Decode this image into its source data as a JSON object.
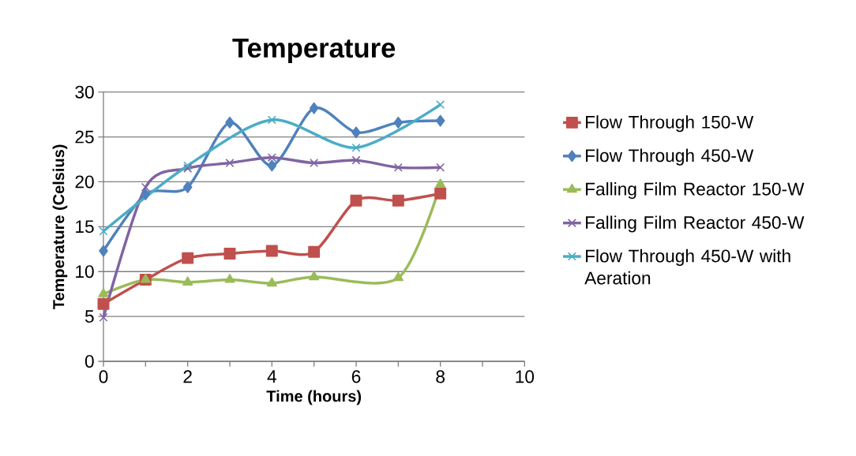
{
  "chart_data": {
    "type": "line",
    "title": "Temperature",
    "xlabel": "Time (hours)",
    "ylabel": "Temperature (Celsius)",
    "xlim": [
      0,
      10
    ],
    "xticks": [
      0,
      {
        "value": 1,
        "label": null
      },
      2,
      {
        "value": 3,
        "label": null
      },
      4,
      {
        "value": 5,
        "label": null
      },
      6,
      {
        "value": 7,
        "label": null
      },
      8,
      {
        "value": 9,
        "label": null
      },
      10
    ],
    "ylim": [
      0,
      30
    ],
    "yticks": [
      0,
      5,
      10,
      15,
      20,
      25,
      30
    ],
    "grid": "y",
    "legend": "right",
    "series": [
      {
        "name": "Flow Through 150-W",
        "color": "#c0504d",
        "marker": "square",
        "x": [
          0,
          1,
          2,
          3,
          4,
          5,
          6,
          7,
          8
        ],
        "values": [
          6.4,
          9.1,
          11.5,
          12.0,
          12.3,
          12.2,
          17.9,
          17.9,
          18.7
        ]
      },
      {
        "name": "Flow Through 450-W",
        "color": "#4f81bd",
        "marker": "diamond",
        "x": [
          0,
          1,
          2,
          3,
          4,
          5,
          6,
          7,
          8
        ],
        "values": [
          12.3,
          18.6,
          19.4,
          26.6,
          21.8,
          28.2,
          25.5,
          26.6,
          26.8
        ]
      },
      {
        "name": "Falling Film Reactor 150-W",
        "color": "#9bbb59",
        "marker": "triangle",
        "x": [
          0,
          1,
          2,
          3,
          4,
          5,
          7,
          8
        ],
        "values": [
          7.5,
          9.1,
          8.8,
          9.1,
          8.7,
          9.4,
          9.3,
          19.7
        ]
      },
      {
        "name": "Falling Film Reactor 450-W",
        "color": "#8064a2",
        "marker": "cross",
        "x": [
          0,
          1,
          2,
          3,
          4,
          5,
          6,
          7,
          8
        ],
        "values": [
          4.9,
          19.4,
          21.5,
          22.1,
          22.7,
          22.1,
          22.4,
          21.6,
          21.6
        ]
      },
      {
        "name": "Flow Through 450-W with Aeration",
        "color": "#4bacc6",
        "marker": "cross",
        "x": [
          0,
          2,
          4,
          6,
          8
        ],
        "values": [
          14.5,
          21.8,
          26.9,
          23.8,
          28.6
        ]
      }
    ]
  }
}
